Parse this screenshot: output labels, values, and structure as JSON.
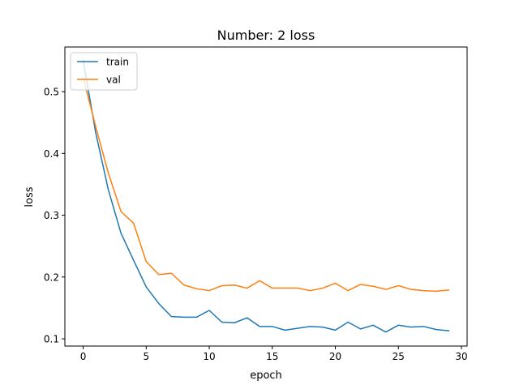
{
  "chart_data": {
    "type": "line",
    "title": "Number: 2 loss",
    "xlabel": "epoch",
    "ylabel": "loss",
    "xlim": [
      -1.45,
      30.45
    ],
    "ylim": [
      0.0883,
      0.5722
    ],
    "xticks": [
      0,
      5,
      10,
      15,
      20,
      25,
      30
    ],
    "yticks": [
      0.1,
      0.2,
      0.3,
      0.4,
      0.5
    ],
    "ytick_labels": [
      "0.1",
      "0.2",
      "0.3",
      "0.4",
      "0.5"
    ],
    "grid": false,
    "legend_position": "top-left",
    "x": [
      0,
      1,
      2,
      3,
      4,
      5,
      6,
      7,
      8,
      9,
      10,
      11,
      12,
      13,
      14,
      15,
      16,
      17,
      18,
      19,
      20,
      21,
      22,
      23,
      24,
      25,
      26,
      27,
      28,
      29
    ],
    "series": [
      {
        "name": "train",
        "color": "#1f77b4",
        "values": [
          0.551,
          0.433,
          0.341,
          0.271,
          0.227,
          0.184,
          0.157,
          0.136,
          0.135,
          0.135,
          0.146,
          0.127,
          0.126,
          0.134,
          0.12,
          0.12,
          0.114,
          0.117,
          0.12,
          0.119,
          0.114,
          0.127,
          0.116,
          0.122,
          0.111,
          0.122,
          0.119,
          0.12,
          0.115,
          0.113
        ]
      },
      {
        "name": "val",
        "color": "#ff7f0e",
        "values": [
          0.523,
          0.443,
          0.368,
          0.306,
          0.287,
          0.225,
          0.204,
          0.206,
          0.187,
          0.181,
          0.178,
          0.186,
          0.187,
          0.182,
          0.194,
          0.182,
          0.182,
          0.182,
          0.178,
          0.182,
          0.19,
          0.178,
          0.188,
          0.185,
          0.18,
          0.186,
          0.18,
          0.178,
          0.177,
          0.179
        ]
      }
    ]
  }
}
